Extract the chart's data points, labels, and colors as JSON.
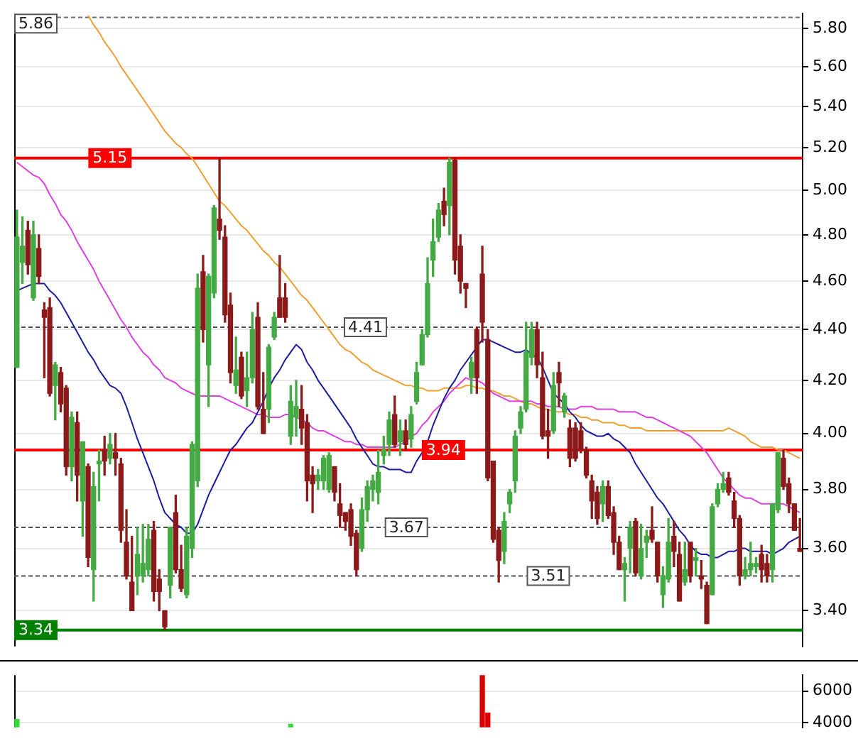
{
  "chart_data": [
    {
      "type": "candlestick",
      "categories": [
        null,
        null,
        null,
        null,
        null,
        null,
        null,
        null,
        null,
        null,
        null,
        null,
        null,
        null,
        null,
        null,
        null,
        null,
        null,
        null,
        null,
        null,
        null,
        null,
        null,
        null,
        null,
        null,
        null,
        null,
        null,
        null,
        null,
        null,
        null,
        null,
        null,
        null,
        null,
        null,
        null,
        null,
        null,
        null,
        null,
        null,
        null,
        null,
        null,
        null,
        null,
        null,
        null,
        null,
        null,
        null,
        null,
        null,
        null,
        null,
        null,
        null,
        null,
        null,
        null,
        null,
        null,
        null,
        null,
        null,
        null,
        null,
        null,
        null,
        null,
        null,
        null,
        null,
        null,
        null,
        null,
        null,
        null,
        null,
        null,
        null,
        null,
        null,
        null,
        null,
        null,
        null,
        null,
        null,
        null,
        null,
        null,
        null,
        null,
        null,
        null,
        null,
        null,
        null,
        null,
        null,
        null,
        null,
        null,
        null,
        null,
        null,
        null,
        null,
        null,
        null,
        null,
        null,
        null,
        null,
        null,
        null,
        null,
        null,
        null,
        null,
        null,
        null,
        null,
        null,
        null,
        null,
        null,
        null,
        null,
        null,
        null,
        null,
        null,
        null,
        null,
        null,
        null,
        null
      ],
      "ohlc": [
        [
          4.25,
          4.91,
          4.25,
          4.79
        ],
        [
          4.68,
          4.88,
          4.59,
          4.75
        ],
        [
          4.82,
          4.86,
          4.63,
          4.67
        ],
        [
          4.53,
          4.86,
          4.52,
          4.8
        ],
        [
          4.74,
          4.8,
          4.59,
          4.62
        ],
        [
          4.48,
          4.51,
          4.21,
          4.45
        ],
        [
          4.49,
          4.53,
          4.14,
          4.15
        ],
        [
          4.18,
          4.27,
          4.05,
          4.26
        ],
        [
          4.23,
          4.25,
          4.08,
          4.11
        ],
        [
          4.17,
          4.18,
          3.85,
          3.88
        ],
        [
          3.88,
          4.08,
          3.83,
          4.06
        ],
        [
          4.04,
          4.08,
          3.76,
          3.85
        ],
        [
          3.76,
          3.97,
          3.64,
          3.97
        ],
        [
          3.88,
          3.89,
          3.54,
          3.57
        ],
        [
          3.53,
          3.86,
          3.43,
          3.81
        ],
        [
          3.89,
          3.94,
          3.76,
          3.9
        ],
        [
          3.94,
          3.99,
          3.85,
          3.9
        ],
        [
          3.91,
          4.0,
          3.89,
          3.96
        ],
        [
          3.93,
          4.0,
          3.85,
          3.91
        ],
        [
          3.89,
          3.91,
          3.62,
          3.66
        ],
        [
          3.62,
          3.73,
          3.5,
          3.51
        ],
        [
          3.49,
          3.64,
          3.4,
          3.4
        ],
        [
          3.51,
          3.67,
          3.45,
          3.58
        ],
        [
          3.51,
          3.68,
          3.49,
          3.55
        ],
        [
          3.53,
          3.68,
          3.51,
          3.63
        ],
        [
          3.66,
          3.69,
          3.43,
          3.46
        ],
        [
          3.5,
          3.53,
          3.4,
          3.46
        ],
        [
          3.4,
          3.4,
          3.34,
          3.35
        ],
        [
          3.48,
          3.67,
          3.44,
          3.67
        ],
        [
          3.72,
          3.78,
          3.52,
          3.53
        ],
        [
          3.53,
          3.61,
          3.46,
          3.47
        ],
        [
          3.45,
          3.67,
          3.44,
          3.64
        ],
        [
          3.6,
          3.97,
          3.57,
          3.96
        ],
        [
          3.83,
          4.63,
          3.81,
          4.57
        ],
        [
          4.64,
          4.71,
          4.35,
          4.4
        ],
        [
          4.26,
          4.63,
          4.1,
          4.62
        ],
        [
          4.55,
          4.93,
          4.53,
          4.92
        ],
        [
          4.87,
          5.15,
          4.78,
          4.82
        ],
        [
          4.79,
          4.84,
          4.43,
          4.46
        ],
        [
          4.5,
          4.55,
          4.19,
          4.23
        ],
        [
          4.18,
          4.37,
          4.15,
          4.24
        ],
        [
          4.29,
          4.31,
          4.13,
          4.14
        ],
        [
          4.16,
          4.31,
          4.1,
          4.21
        ],
        [
          4.21,
          4.47,
          4.19,
          4.4
        ],
        [
          4.45,
          4.51,
          4.09,
          4.1
        ],
        [
          4.09,
          4.23,
          4.0,
          4.0
        ],
        [
          4.09,
          4.34,
          4.04,
          4.33
        ],
        [
          4.37,
          4.47,
          4.36,
          4.45
        ],
        [
          4.53,
          4.71,
          4.45,
          4.45
        ],
        [
          4.53,
          4.59,
          4.43,
          4.45
        ],
        [
          3.99,
          4.18,
          3.96,
          4.12
        ],
        [
          4.06,
          4.2,
          3.99,
          4.1
        ],
        [
          4.09,
          4.18,
          3.96,
          4.02
        ],
        [
          4.04,
          4.07,
          3.76,
          3.83
        ],
        [
          3.85,
          3.88,
          3.72,
          3.82
        ],
        [
          3.83,
          3.87,
          3.8,
          3.85
        ],
        [
          3.83,
          3.92,
          3.8,
          3.91
        ],
        [
          3.8,
          3.93,
          3.79,
          3.92
        ],
        [
          3.88,
          3.88,
          3.76,
          3.79
        ],
        [
          3.75,
          3.82,
          3.67,
          3.71
        ],
        [
          3.72,
          3.72,
          3.66,
          3.69
        ],
        [
          3.73,
          3.75,
          3.61,
          3.64
        ],
        [
          3.65,
          3.66,
          3.51,
          3.53
        ],
        [
          3.6,
          3.77,
          3.59,
          3.73
        ],
        [
          3.73,
          3.83,
          3.69,
          3.81
        ],
        [
          3.8,
          3.85,
          3.76,
          3.83
        ],
        [
          3.79,
          3.94,
          3.75,
          3.86
        ],
        [
          3.92,
          3.99,
          3.89,
          3.94
        ],
        [
          3.96,
          4.08,
          3.92,
          4.05
        ],
        [
          4.07,
          4.14,
          3.95,
          3.96
        ],
        [
          3.97,
          4.05,
          3.92,
          4.01
        ],
        [
          4.01,
          4.05,
          3.94,
          3.96
        ],
        [
          3.98,
          4.1,
          3.95,
          4.07
        ],
        [
          4.12,
          4.27,
          4.11,
          4.23
        ],
        [
          4.26,
          4.4,
          4.26,
          4.38
        ],
        [
          4.38,
          4.7,
          4.37,
          4.59
        ],
        [
          4.69,
          4.87,
          4.62,
          4.77
        ],
        [
          4.79,
          4.94,
          4.77,
          4.91
        ],
        [
          4.95,
          5.01,
          4.84,
          4.89
        ],
        [
          4.93,
          5.15,
          4.8,
          5.13
        ],
        [
          5.14,
          5.15,
          4.63,
          4.69
        ],
        [
          4.75,
          4.8,
          4.55,
          4.6
        ],
        [
          4.59,
          4.59,
          4.49,
          4.57
        ],
        [
          4.21,
          4.29,
          4.15,
          4.27
        ],
        [
          4.4,
          4.41,
          4.15,
          4.21
        ],
        [
          4.63,
          4.75,
          4.35,
          4.43
        ],
        [
          4.36,
          4.4,
          3.83,
          3.84
        ],
        [
          3.9,
          3.9,
          3.62,
          3.63
        ],
        [
          3.66,
          3.67,
          3.49,
          3.56
        ],
        [
          3.59,
          3.72,
          3.55,
          3.69
        ],
        [
          3.75,
          3.8,
          3.72,
          3.79
        ],
        [
          3.83,
          4.01,
          3.79,
          3.99
        ],
        [
          4.02,
          4.1,
          4.0,
          4.08
        ],
        [
          4.09,
          4.43,
          4.08,
          4.31
        ],
        [
          4.29,
          4.43,
          4.26,
          4.4
        ],
        [
          4.4,
          4.43,
          4.21,
          4.26
        ],
        [
          4.21,
          4.31,
          3.98,
          3.99
        ],
        [
          4.01,
          4.09,
          3.91,
          3.99
        ],
        [
          4.01,
          4.23,
          4.0,
          4.18
        ],
        [
          4.23,
          4.27,
          4.1,
          4.19
        ],
        [
          4.08,
          4.15,
          4.06,
          4.14
        ],
        [
          4.02,
          4.05,
          3.88,
          3.91
        ],
        [
          4.02,
          4.04,
          3.9,
          3.91
        ],
        [
          4.01,
          4.04,
          3.93,
          3.94
        ],
        [
          3.94,
          3.95,
          3.84,
          3.85
        ],
        [
          3.83,
          3.85,
          3.7,
          3.76
        ],
        [
          3.79,
          3.81,
          3.68,
          3.7
        ],
        [
          3.75,
          3.83,
          3.69,
          3.81
        ],
        [
          3.81,
          3.83,
          3.7,
          3.71
        ],
        [
          3.72,
          3.74,
          3.58,
          3.62
        ],
        [
          3.62,
          3.64,
          3.53,
          3.53
        ],
        [
          3.53,
          3.57,
          3.43,
          3.55
        ],
        [
          3.6,
          3.69,
          3.52,
          3.67
        ],
        [
          3.69,
          3.7,
          3.51,
          3.52
        ],
        [
          3.51,
          3.68,
          3.5,
          3.6
        ],
        [
          3.62,
          3.66,
          3.57,
          3.64
        ],
        [
          3.66,
          3.74,
          3.62,
          3.63
        ],
        [
          3.62,
          3.62,
          3.49,
          3.51
        ],
        [
          3.45,
          3.54,
          3.41,
          3.51
        ],
        [
          3.5,
          3.7,
          3.49,
          3.62
        ],
        [
          3.64,
          3.69,
          3.54,
          3.59
        ],
        [
          3.58,
          3.62,
          3.43,
          3.43
        ],
        [
          3.49,
          3.62,
          3.48,
          3.53
        ],
        [
          3.62,
          3.62,
          3.49,
          3.51
        ],
        [
          3.56,
          3.6,
          3.51,
          3.57
        ],
        [
          3.51,
          3.56,
          3.47,
          3.5
        ],
        [
          3.48,
          3.49,
          3.36,
          3.36
        ],
        [
          3.45,
          3.75,
          3.45,
          3.74
        ],
        [
          3.75,
          3.82,
          3.74,
          3.8
        ],
        [
          3.8,
          3.86,
          3.79,
          3.82
        ],
        [
          3.84,
          3.86,
          3.78,
          3.79
        ],
        [
          3.76,
          3.79,
          3.67,
          3.7
        ],
        [
          3.7,
          3.71,
          3.48,
          3.51
        ],
        [
          3.51,
          3.57,
          3.5,
          3.53
        ],
        [
          3.53,
          3.62,
          3.51,
          3.55
        ],
        [
          3.54,
          3.57,
          3.52,
          3.55
        ],
        [
          3.58,
          3.61,
          3.49,
          3.53
        ],
        [
          3.55,
          3.58,
          3.49,
          3.51
        ],
        [
          3.53,
          3.75,
          3.49,
          3.75
        ],
        [
          3.73,
          3.93,
          3.72,
          3.93
        ],
        [
          3.91,
          3.94,
          3.8,
          3.81
        ],
        [
          3.82,
          3.84,
          3.72,
          3.75
        ],
        [
          3.75,
          3.75,
          3.66,
          3.66
        ],
        [
          3.6,
          3.7,
          3.59,
          3.59
        ]
      ],
      "colors": [
        "#44aa44",
        "#44aa44",
        "#8b1a1a",
        "#44aa44",
        "#8b1a1a",
        "#8b1a1a",
        "#8b1a1a",
        "#44aa44",
        "#8b1a1a",
        "#8b1a1a",
        "#44aa44",
        "#8b1a1a",
        "#44aa44",
        "#8b1a1a",
        "#44aa44",
        "#44aa44",
        "#8b1a1a",
        "#44aa44",
        "#8b1a1a",
        "#8b1a1a",
        "#8b1a1a",
        "#8b1a1a",
        "#44aa44",
        "#44aa44",
        "#44aa44",
        "#8b1a1a",
        "#8b1a1a",
        "#8b1a1a",
        "#44aa44",
        "#8b1a1a",
        "#8b1a1a",
        "#44aa44",
        "#44aa44",
        "#44aa44",
        "#8b1a1a",
        "#44aa44",
        "#44aa44",
        "#8b1a1a",
        "#8b1a1a",
        "#8b1a1a",
        "#44aa44",
        "#8b1a1a",
        "#44aa44",
        "#44aa44",
        "#8b1a1a",
        "#8b1a1a",
        "#44aa44",
        "#44aa44",
        "#8b1a1a",
        "#8b1a1a",
        "#44aa44",
        "#44aa44",
        "#8b1a1a",
        "#8b1a1a",
        "#8b1a1a",
        "#44aa44",
        "#44aa44",
        "#44aa44",
        "#8b1a1a",
        "#8b1a1a",
        "#8b1a1a",
        "#8b1a1a",
        "#8b1a1a",
        "#44aa44",
        "#44aa44",
        "#44aa44",
        "#44aa44",
        "#44aa44",
        "#44aa44",
        "#8b1a1a",
        "#44aa44",
        "#8b1a1a",
        "#44aa44",
        "#44aa44",
        "#44aa44",
        "#44aa44",
        "#44aa44",
        "#44aa44",
        "#8b1a1a",
        "#44aa44",
        "#8b1a1a",
        "#8b1a1a",
        "#8b1a1a",
        "#44aa44",
        "#8b1a1a",
        "#8b1a1a",
        "#8b1a1a",
        "#8b1a1a",
        "#8b1a1a",
        "#44aa44",
        "#44aa44",
        "#44aa44",
        "#44aa44",
        "#44aa44",
        "#44aa44",
        "#8b1a1a",
        "#8b1a1a",
        "#8b1a1a",
        "#44aa44",
        "#8b1a1a",
        "#44aa44",
        "#8b1a1a",
        "#8b1a1a",
        "#8b1a1a",
        "#8b1a1a",
        "#8b1a1a",
        "#8b1a1a",
        "#44aa44",
        "#8b1a1a",
        "#8b1a1a",
        "#8b1a1a",
        "#44aa44",
        "#44aa44",
        "#8b1a1a",
        "#44aa44",
        "#44aa44",
        "#8b1a1a",
        "#8b1a1a",
        "#44aa44",
        "#44aa44",
        "#8b1a1a",
        "#8b1a1a",
        "#44aa44",
        "#8b1a1a",
        "#44aa44",
        "#8b1a1a",
        "#8b1a1a",
        "#44aa44",
        "#44aa44",
        "#44aa44",
        "#8b1a1a",
        "#8b1a1a",
        "#8b1a1a",
        "#44aa44",
        "#44aa44",
        "#44aa44",
        "#8b1a1a",
        "#8b1a1a",
        "#44aa44",
        "#44aa44",
        "#8b1a1a",
        "#8b1a1a",
        "#8b1a1a",
        "#8b1a1a"
      ],
      "series": [
        {
          "type": "line",
          "color": "#1c1ca0",
          "values": [
            4.56,
            4.57,
            4.58,
            4.59,
            4.59,
            4.59,
            4.56,
            4.54,
            4.51,
            4.47,
            4.43,
            4.39,
            4.35,
            4.31,
            4.28,
            4.24,
            4.21,
            4.18,
            4.17,
            4.15,
            4.1,
            4.04,
            3.98,
            3.93,
            3.88,
            3.83,
            3.77,
            3.72,
            3.7,
            3.68,
            3.67,
            3.65,
            3.65,
            3.68,
            3.73,
            3.78,
            3.82,
            3.86,
            3.9,
            3.94,
            3.96,
            3.99,
            4.02,
            4.04,
            4.08,
            4.12,
            4.17,
            4.21,
            4.24,
            4.28,
            4.31,
            4.34,
            4.32,
            4.27,
            4.24,
            4.2,
            4.17,
            4.14,
            4.11,
            4.08,
            4.05,
            4.02,
            3.98,
            3.95,
            3.92,
            3.89,
            3.88,
            3.88,
            3.87,
            3.87,
            3.87,
            3.86,
            3.86,
            3.9,
            3.93,
            3.97,
            4.03,
            4.08,
            4.13,
            4.17,
            4.2,
            4.24,
            4.27,
            4.3,
            4.33,
            4.36,
            4.36,
            4.35,
            4.34,
            4.33,
            4.32,
            4.31,
            4.31,
            4.32,
            4.3,
            4.29,
            4.25,
            4.2,
            4.15,
            4.13,
            4.11,
            4.08,
            4.06,
            4.03,
            4.01,
            4.0,
            3.99,
            3.99,
            4.0,
            3.98,
            3.97,
            3.95,
            3.93,
            3.89,
            3.86,
            3.83,
            3.8,
            3.77,
            3.75,
            3.72,
            3.69,
            3.66,
            3.64,
            3.61,
            3.59,
            3.58,
            3.58,
            3.57,
            3.57,
            3.58,
            3.59,
            3.59,
            3.6,
            3.6,
            3.59,
            3.59,
            3.59,
            3.59,
            3.58,
            3.59,
            3.6,
            3.62,
            3.63,
            3.64
          ]
        },
        {
          "type": "line",
          "color": "#e040e0",
          "values": [
            5.13,
            5.11,
            5.09,
            5.07,
            5.06,
            5.03,
            4.98,
            4.94,
            4.89,
            4.86,
            4.82,
            4.77,
            4.73,
            4.69,
            4.65,
            4.6,
            4.56,
            4.52,
            4.48,
            4.44,
            4.41,
            4.37,
            4.34,
            4.31,
            4.29,
            4.26,
            4.24,
            4.21,
            4.2,
            4.19,
            4.17,
            4.16,
            4.15,
            4.14,
            4.14,
            4.14,
            4.14,
            4.14,
            4.13,
            4.12,
            4.11,
            4.1,
            4.09,
            4.08,
            4.07,
            4.07,
            4.06,
            4.06,
            4.06,
            4.07,
            4.07,
            4.06,
            4.05,
            4.04,
            4.02,
            4.01,
            4.01,
            4.0,
            3.99,
            3.98,
            3.97,
            3.97,
            3.96,
            3.96,
            3.95,
            3.95,
            3.95,
            3.95,
            3.95,
            3.95,
            3.96,
            3.97,
            3.99,
            4.0,
            4.03,
            4.05,
            4.08,
            4.1,
            4.12,
            4.15,
            4.17,
            4.19,
            4.21,
            4.2,
            4.2,
            4.19,
            4.17,
            4.15,
            4.14,
            4.13,
            4.12,
            4.12,
            4.12,
            4.12,
            4.12,
            4.11,
            4.11,
            4.1,
            4.1,
            4.1,
            4.09,
            4.09,
            4.09,
            4.1,
            4.1,
            4.1,
            4.09,
            4.09,
            4.09,
            4.09,
            4.08,
            4.08,
            4.08,
            4.08,
            4.07,
            4.06,
            4.06,
            4.05,
            4.04,
            4.03,
            4.02,
            4.01,
            4.0,
            3.99,
            3.97,
            3.95,
            3.93,
            3.9,
            3.87,
            3.84,
            3.82,
            3.8,
            3.78,
            3.77,
            3.77,
            3.76,
            3.75,
            3.75,
            3.75,
            3.75,
            3.75,
            3.74,
            3.73,
            3.72
          ]
        },
        {
          "type": "line",
          "color": "#f0a030",
          "values": [
            null,
            null,
            null,
            null,
            null,
            null,
            null,
            null,
            null,
            null,
            null,
            null,
            null,
            5.87,
            5.82,
            5.78,
            5.73,
            5.69,
            5.65,
            5.6,
            5.56,
            5.52,
            5.48,
            5.44,
            5.4,
            5.36,
            5.32,
            5.28,
            5.25,
            5.22,
            5.2,
            5.17,
            5.15,
            5.11,
            5.07,
            5.03,
            4.99,
            4.95,
            4.93,
            4.9,
            4.87,
            4.84,
            4.82,
            4.79,
            4.76,
            4.73,
            4.71,
            4.68,
            4.66,
            4.63,
            4.6,
            4.57,
            4.54,
            4.52,
            4.49,
            4.46,
            4.43,
            4.4,
            4.37,
            4.34,
            4.32,
            4.31,
            4.29,
            4.27,
            4.26,
            4.24,
            4.23,
            4.22,
            4.21,
            4.2,
            4.19,
            4.18,
            4.18,
            4.17,
            4.17,
            4.16,
            4.16,
            4.16,
            4.17,
            4.17,
            4.17,
            4.17,
            4.18,
            4.18,
            4.17,
            4.17,
            4.16,
            4.16,
            4.15,
            4.14,
            4.14,
            4.13,
            4.12,
            4.11,
            4.11,
            4.1,
            4.09,
            4.09,
            4.08,
            4.08,
            4.08,
            4.07,
            4.07,
            4.06,
            4.06,
            4.05,
            4.05,
            4.04,
            4.04,
            4.04,
            4.03,
            4.03,
            4.02,
            4.02,
            4.02,
            4.01,
            4.01,
            4.01,
            4.01,
            4.01,
            4.01,
            4.01,
            4.01,
            4.01,
            4.01,
            4.01,
            4.01,
            4.01,
            4.01,
            4.01,
            4.02,
            4.01,
            4.0,
            3.99,
            3.97,
            3.96,
            3.95,
            3.95,
            3.95,
            3.94,
            3.94,
            3.93,
            3.92,
            3.91
          ]
        }
      ],
      "ylim": [
        3.29,
        5.88
      ],
      "yticks": [
        {
          "value": 3.4,
          "label": "3.40"
        },
        {
          "value": 3.6,
          "label": "3.60"
        },
        {
          "value": 3.8,
          "label": "3.80"
        },
        {
          "value": 4,
          "label": "4.00"
        },
        {
          "value": 4.2,
          "label": "4.20"
        },
        {
          "value": 4.4,
          "label": "4.40"
        },
        {
          "value": 4.6,
          "label": "4.60"
        },
        {
          "value": 4.8,
          "label": "4.80"
        },
        {
          "value": 5,
          "label": "5.00"
        },
        {
          "value": 5.2,
          "label": "5.20"
        },
        {
          "value": 5.4,
          "label": "5.40"
        },
        {
          "value": 5.6,
          "label": "5.60"
        },
        {
          "value": 5.8,
          "label": "5.80"
        }
      ],
      "log": "y",
      "grid": "y",
      "tick_labels": "y",
      "ref_lines": [
        {
          "axis": "y",
          "value": 5.86,
          "color": "#707070",
          "line_style": "dashed"
        },
        {
          "axis": "y",
          "value": 5.15,
          "color": "#ff0000",
          "line_style": "solid"
        },
        {
          "axis": "y",
          "value": 4.41,
          "color": "#505050",
          "line_style": "dashed"
        },
        {
          "axis": "y",
          "value": 3.94,
          "color": "#ff0000",
          "line_style": "solid"
        },
        {
          "axis": "y",
          "value": 3.67,
          "color": "#505050",
          "line_style": "dashed"
        },
        {
          "axis": "y",
          "value": 3.51,
          "color": "#505050",
          "line_style": "dashed"
        },
        {
          "axis": "y",
          "value": 3.34,
          "color": "#008000",
          "line_style": "solid"
        }
      ],
      "annotations": [
        {
          "text": "5.86",
          "y": 5.86
        },
        {
          "text": "5.15",
          "y": 5.15
        },
        {
          "text": "4.41",
          "y": 4.41
        },
        {
          "text": "3.94",
          "y": 3.94
        },
        {
          "text": "3.67",
          "y": 3.67
        },
        {
          "text": "3.51",
          "y": 3.51
        },
        {
          "text": "3.34",
          "y": 3.34
        }
      ]
    },
    {
      "type": "bar",
      "categories": [
        null,
        null,
        null,
        null,
        null,
        null,
        null,
        null,
        null,
        null,
        null,
        null,
        null,
        null,
        null,
        null,
        null,
        null,
        null,
        null,
        null,
        null,
        null,
        null,
        null,
        null,
        null,
        null,
        null,
        null,
        null,
        null,
        null,
        null,
        null,
        null,
        null,
        null,
        null,
        null,
        null,
        null,
        null,
        null,
        null,
        null,
        null,
        null,
        null,
        null,
        null,
        null,
        null,
        null,
        null,
        null,
        null,
        null,
        null,
        null,
        null,
        null,
        null,
        null,
        null,
        null,
        null,
        null,
        null,
        null,
        null,
        null,
        null,
        null,
        null,
        null,
        null,
        null,
        null,
        null,
        null,
        null,
        null,
        null,
        null,
        null,
        null,
        null,
        null,
        null,
        null,
        null,
        null,
        null,
        null,
        null,
        null,
        null,
        null,
        null,
        null,
        null,
        null,
        null,
        null,
        null,
        null,
        null,
        null,
        null,
        null,
        null,
        null,
        null,
        null,
        null,
        null,
        null,
        null,
        null,
        null,
        null,
        null,
        null,
        null,
        null,
        null,
        null,
        null,
        null,
        null,
        null,
        null,
        null,
        null,
        null,
        null,
        null,
        null,
        null,
        null,
        null,
        null,
        null
      ],
      "values": [
        4200,
        null,
        null,
        null,
        null,
        null,
        null,
        null,
        null,
        null,
        null,
        null,
        null,
        null,
        null,
        null,
        null,
        null,
        null,
        null,
        null,
        null,
        null,
        null,
        null,
        null,
        null,
        null,
        null,
        null,
        null,
        null,
        null,
        null,
        null,
        null,
        null,
        null,
        null,
        null,
        null,
        null,
        null,
        null,
        null,
        null,
        null,
        null,
        null,
        null,
        3900,
        null,
        null,
        null,
        null,
        null,
        null,
        null,
        null,
        null,
        null,
        null,
        null,
        null,
        null,
        null,
        null,
        null,
        null,
        null,
        null,
        null,
        null,
        null,
        null,
        null,
        null,
        null,
        null,
        null,
        null,
        null,
        null,
        null,
        null,
        7000,
        4600,
        null,
        null,
        null,
        null,
        null,
        null,
        null,
        null,
        null,
        null,
        null,
        null,
        null,
        null,
        null,
        null,
        null,
        null,
        null,
        null,
        null,
        null,
        null,
        null,
        null,
        null,
        null,
        null,
        null,
        null,
        null,
        null,
        null,
        null,
        null,
        null,
        null,
        null,
        null,
        null,
        null,
        null,
        null,
        null,
        null,
        null,
        null,
        null,
        null,
        null,
        null,
        null,
        null,
        null,
        null,
        null,
        null
      ],
      "colors": [
        "#33dd33",
        "#33dd33",
        "#33dd33",
        "#33dd33",
        "#33dd33",
        "#33dd33",
        "#33dd33",
        "#33dd33",
        "#33dd33",
        "#33dd33",
        "#33dd33",
        "#33dd33",
        "#33dd33",
        "#33dd33",
        "#33dd33",
        "#33dd33",
        "#33dd33",
        "#33dd33",
        "#33dd33",
        "#33dd33",
        "#33dd33",
        "#33dd33",
        "#33dd33",
        "#33dd33",
        "#33dd33",
        "#33dd33",
        "#33dd33",
        "#33dd33",
        "#33dd33",
        "#33dd33",
        "#33dd33",
        "#33dd33",
        "#33dd33",
        "#33dd33",
        "#33dd33",
        "#33dd33",
        "#33dd33",
        "#33dd33",
        "#33dd33",
        "#33dd33",
        "#33dd33",
        "#33dd33",
        "#33dd33",
        "#33dd33",
        "#33dd33",
        "#33dd33",
        "#33dd33",
        "#33dd33",
        "#33dd33",
        "#33dd33",
        "#33dd33",
        "#33dd33",
        "#33dd33",
        "#33dd33",
        "#33dd33",
        "#33dd33",
        "#33dd33",
        "#33dd33",
        "#33dd33",
        "#33dd33",
        "#33dd33",
        "#33dd33",
        "#33dd33",
        "#33dd33",
        "#33dd33",
        "#33dd33",
        "#33dd33",
        "#33dd33",
        "#33dd33",
        "#33dd33",
        "#33dd33",
        "#33dd33",
        "#33dd33",
        "#33dd33",
        "#33dd33",
        "#33dd33",
        "#33dd33",
        "#33dd33",
        "#33dd33",
        "#33dd33",
        "#33dd33",
        "#33dd33",
        "#33dd33",
        "#33dd33",
        "#33dd33",
        "#dd0000",
        "#dd0000",
        "#33dd33",
        "#33dd33",
        "#33dd33",
        "#33dd33",
        "#33dd33",
        "#33dd33",
        "#33dd33",
        "#33dd33",
        "#33dd33",
        "#33dd33",
        "#33dd33",
        "#33dd33",
        "#33dd33",
        "#33dd33",
        "#33dd33",
        "#33dd33",
        "#33dd33",
        "#33dd33",
        "#33dd33",
        "#33dd33",
        "#33dd33",
        "#33dd33",
        "#33dd33",
        "#33dd33",
        "#33dd33",
        "#33dd33",
        "#33dd33",
        "#33dd33",
        "#33dd33",
        "#33dd33",
        "#33dd33",
        "#33dd33",
        "#33dd33",
        "#33dd33",
        "#33dd33",
        "#33dd33",
        "#33dd33",
        "#33dd33",
        "#33dd33",
        "#33dd33",
        "#33dd33",
        "#33dd33",
        "#33dd33",
        "#33dd33",
        "#33dd33",
        "#33dd33",
        "#33dd33",
        "#33dd33",
        "#33dd33",
        "#33dd33",
        "#33dd33",
        "#33dd33",
        "#33dd33",
        "#33dd33",
        "#33dd33",
        "#33dd33",
        "#33dd33"
      ],
      "ylim": [
        3700,
        7000
      ],
      "yticks": [
        4000,
        6000
      ],
      "grid": "y",
      "tick_labels": "y"
    }
  ]
}
